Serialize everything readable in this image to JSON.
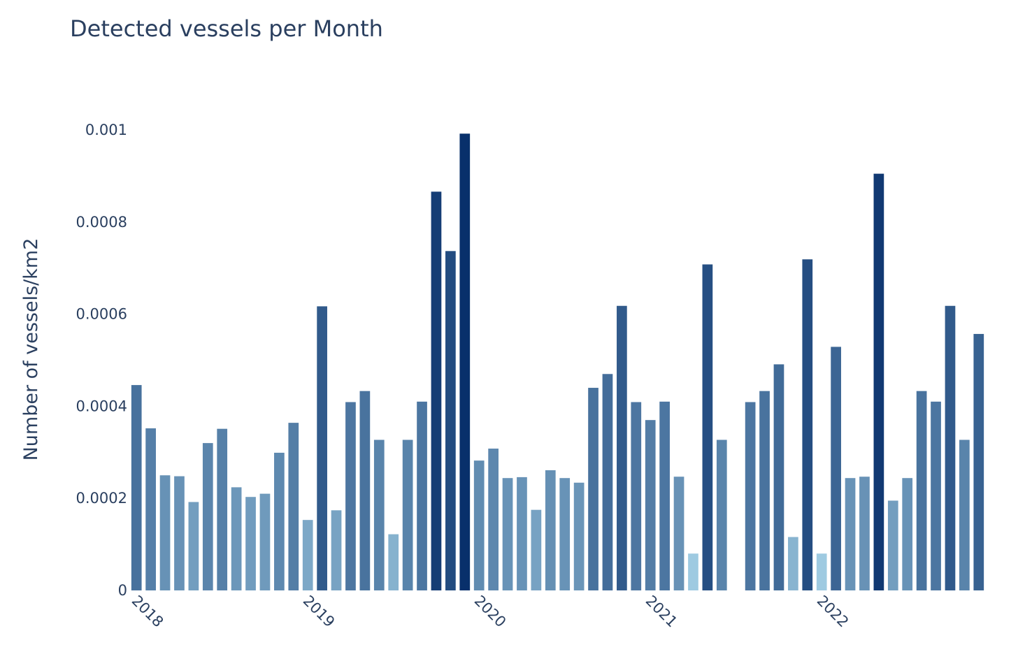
{
  "chart_data": {
    "type": "bar",
    "title": "Detected vessels per Month",
    "xlabel": "",
    "ylabel": "Number of vessels/km2",
    "ylim": [
      0,
      0.001
    ],
    "y_ticks": [
      "0",
      "0.0002",
      "0.0004",
      "0.0006",
      "0.0008",
      "0.001"
    ],
    "x_ticks": [
      "2018",
      "2019",
      "2020",
      "2021",
      "2022"
    ],
    "grid": false,
    "legend": "none",
    "color_scale": [
      "#9ecae1",
      "#08306b"
    ],
    "x": [
      "2018-01",
      "2018-02",
      "2018-03",
      "2018-04",
      "2018-05",
      "2018-06",
      "2018-07",
      "2018-08",
      "2018-09",
      "2018-10",
      "2018-11",
      "2018-12",
      "2019-01",
      "2019-02",
      "2019-03",
      "2019-04",
      "2019-05",
      "2019-06",
      "2019-07",
      "2019-08",
      "2019-09",
      "2019-10",
      "2019-11",
      "2019-12",
      "2020-01",
      "2020-02",
      "2020-03",
      "2020-04",
      "2020-05",
      "2020-06",
      "2020-07",
      "2020-08",
      "2020-09",
      "2020-10",
      "2020-11",
      "2020-12",
      "2021-01",
      "2021-02",
      "2021-03",
      "2021-04",
      "2021-05",
      "2021-06",
      "2021-07",
      "2021-08",
      "2021-09",
      "2021-10",
      "2021-11",
      "2021-12",
      "2022-01",
      "2022-02",
      "2022-03",
      "2022-04",
      "2022-05",
      "2022-06",
      "2022-07",
      "2022-08",
      "2022-09",
      "2022-10",
      "2022-11",
      "2022-12"
    ],
    "values": [
      0.000446,
      0.000352,
      0.00025,
      0.000248,
      0.000192,
      0.00032,
      0.000351,
      0.000224,
      0.000203,
      0.00021,
      0.000299,
      0.000364,
      0.000153,
      0.000617,
      0.000174,
      0.000409,
      0.000433,
      0.000327,
      0.000122,
      0.000327,
      0.00041,
      0.000866,
      0.000737,
      0.000992,
      0.000282,
      0.000308,
      0.000244,
      0.000246,
      0.000175,
      0.000261,
      0.000244,
      0.000234,
      0.00044,
      0.00047,
      0.000618,
      0.000409,
      0.00037,
      0.00041,
      0.000247,
      8e-05,
      0.000708,
      0.000327,
      null,
      0.000409,
      0.000433,
      0.000491,
      0.000116,
      0.000719,
      8e-05,
      0.000529,
      0.000244,
      0.000247,
      0.000905,
      0.000195,
      0.000244,
      0.000433,
      0.00041,
      0.000618,
      0.000327,
      0.000557
    ]
  }
}
